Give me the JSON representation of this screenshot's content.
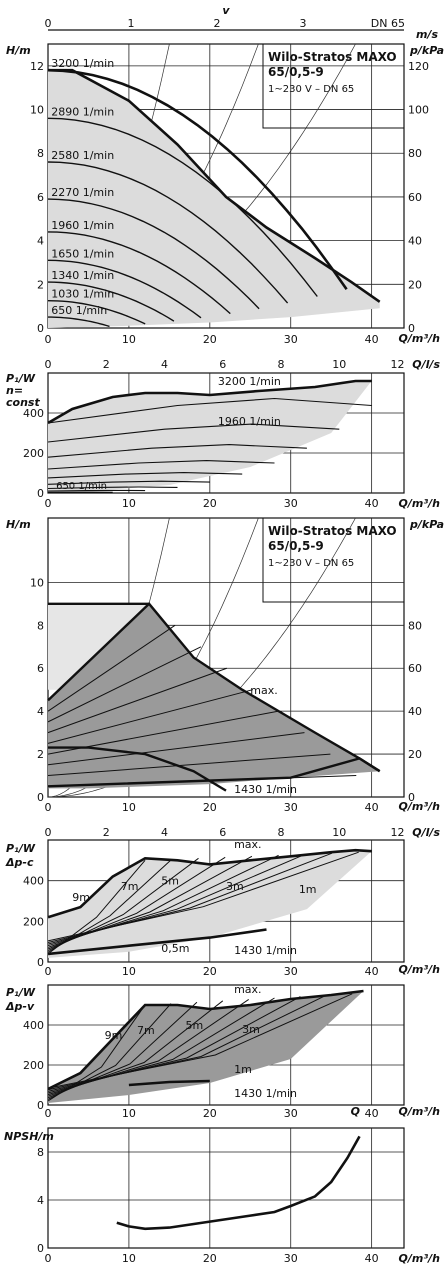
{
  "chart_data": [
    {
      "id": "top_axis",
      "type": "line",
      "title": "v",
      "ticks": [
        "0",
        "1",
        "2",
        "3",
        "DN 65"
      ],
      "tick_values": [
        0,
        1,
        2,
        3
      ],
      "unit": "m/s"
    },
    {
      "id": "qh_speed",
      "type": "line",
      "xlabel": "Q/m³/h",
      "ylabel": "H/m",
      "y2label": "p/kPa",
      "xlim": [
        0,
        44
      ],
      "ylim": [
        0,
        13
      ],
      "y2lim": [
        0,
        130
      ],
      "xticks": [
        "0",
        "10",
        "20",
        "30",
        "40"
      ],
      "yticks": [
        "0",
        "2",
        "4",
        "6",
        "8",
        "10",
        "12"
      ],
      "y2ticks": [
        "0",
        "20",
        "40",
        "60",
        "80",
        "100",
        "120"
      ],
      "title_box": {
        "line1": "Wilo-Stratos MAXO",
        "line2": "65/0,5-9",
        "line3": "1~230 V – DN 65"
      },
      "max_curve": [
        [
          0,
          11.8
        ],
        [
          3,
          11.8
        ],
        [
          10,
          10.4
        ],
        [
          16,
          8.4
        ],
        [
          22,
          6
        ],
        [
          27,
          4.6
        ],
        [
          33,
          3.2
        ],
        [
          37.5,
          2.1
        ],
        [
          41,
          1.2
        ]
      ],
      "speed_curves": [
        {
          "label": "3200 1/min",
          "head": 11.8
        },
        {
          "label": "2890 1/min",
          "head": 9.6
        },
        {
          "label": "2580 1/min",
          "head": 7.6
        },
        {
          "label": "2270 1/min",
          "head": 5.9
        },
        {
          "label": "1960 1/min",
          "head": 4.4
        },
        {
          "label": "1650 1/min",
          "head": 3.1
        },
        {
          "label": "1340 1/min",
          "head": 2.1
        },
        {
          "label": "1030 1/min",
          "head": 1.25
        },
        {
          "label": "650 1/min",
          "head": 0.5
        }
      ]
    },
    {
      "id": "power_speed",
      "type": "line",
      "xlabel": "Q/m³/h",
      "ylabel": "P₁/W",
      "ylabel2": "n=",
      "ylabel3": "const",
      "x2label": "Q/l/s",
      "xlim": [
        0,
        44
      ],
      "ylim": [
        0,
        600
      ],
      "x2ticks": [
        "0",
        "2",
        "4",
        "6",
        "8",
        "10",
        "12"
      ],
      "xticks": [
        "0",
        "10",
        "20",
        "30",
        "40"
      ],
      "yticks": [
        "0",
        "200",
        "400"
      ],
      "curve_labels": [
        "3200 1/min",
        "1960 1/min",
        "650 1/min"
      ],
      "max_curve": [
        [
          0,
          350
        ],
        [
          3,
          420
        ],
        [
          8,
          480
        ],
        [
          12,
          500
        ],
        [
          16,
          500
        ],
        [
          20,
          490
        ],
        [
          26,
          510
        ],
        [
          33,
          530
        ],
        [
          38,
          560
        ],
        [
          40,
          560
        ]
      ]
    },
    {
      "id": "qh_dpc",
      "type": "area",
      "xlabel": "Q/m³/h",
      "ylabel": "H/m",
      "y2label": "p/kPa",
      "xlim": [
        0,
        44
      ],
      "ylim": [
        0,
        13
      ],
      "y2lim": [
        0,
        130
      ],
      "xticks": [
        "0",
        "10",
        "20",
        "30",
        "40"
      ],
      "yticks": [
        "0",
        "2",
        "4",
        "6",
        "8",
        "10"
      ],
      "y2ticks": [
        "0",
        "20",
        "40",
        "60",
        "80"
      ],
      "title_box": {
        "line1": "Wilo-Stratos MAXO",
        "line2": "65/0,5-9",
        "line3": "1~230 V – DN 65"
      },
      "labels": [
        "max.",
        "1430 1/min"
      ],
      "max_curve": [
        [
          0,
          9
        ],
        [
          12.5,
          9
        ],
        [
          18,
          6.5
        ],
        [
          24,
          5
        ],
        [
          33,
          3
        ],
        [
          38.5,
          1.8
        ],
        [
          41,
          1.2
        ]
      ],
      "min_curve": [
        [
          0,
          2.3
        ],
        [
          5,
          2.3
        ],
        [
          12,
          2
        ],
        [
          18,
          1.2
        ],
        [
          22,
          0.3
        ]
      ]
    },
    {
      "id": "power_dpc",
      "type": "line",
      "xlabel": "Q/m³/h",
      "x2label": "Q/l/s",
      "ylabel": "P₁/W",
      "ylabel2": "Δp-c",
      "xlim": [
        0,
        44
      ],
      "ylim": [
        0,
        600
      ],
      "x2ticks": [
        "0",
        "2",
        "4",
        "6",
        "8",
        "10",
        "12"
      ],
      "xticks": [
        "0",
        "10",
        "20",
        "30",
        "40"
      ],
      "yticks": [
        "0",
        "200",
        "400"
      ],
      "curve_labels": [
        "max.",
        "9m",
        "7m",
        "5m",
        "3m",
        "1m",
        "0,5m",
        "1430 1/min"
      ],
      "max_curve": [
        [
          0,
          220
        ],
        [
          4,
          270
        ],
        [
          8,
          420
        ],
        [
          12,
          510
        ],
        [
          16,
          500
        ],
        [
          20,
          480
        ],
        [
          25,
          500
        ],
        [
          30,
          520
        ],
        [
          35,
          540
        ],
        [
          38,
          550
        ],
        [
          40,
          545
        ]
      ]
    },
    {
      "id": "power_dpv",
      "type": "line",
      "xlabel": "Q/m³/h",
      "xlabel_extra": "Q",
      "ylabel": "P₁/W",
      "ylabel2": "Δp-v",
      "xlim": [
        0,
        44
      ],
      "ylim": [
        0,
        600
      ],
      "xticks": [
        "0",
        "10",
        "20",
        "30",
        "40"
      ],
      "yticks": [
        "0",
        "200",
        "400"
      ],
      "curve_labels": [
        "max.",
        "9m",
        "7m",
        "5m",
        "3m",
        "1m",
        "1430 1/min"
      ],
      "max_curve": [
        [
          0,
          80
        ],
        [
          4,
          160
        ],
        [
          8,
          330
        ],
        [
          12,
          500
        ],
        [
          16,
          500
        ],
        [
          20,
          480
        ],
        [
          25,
          500
        ],
        [
          30,
          530
        ],
        [
          35,
          550
        ],
        [
          39,
          570
        ]
      ]
    },
    {
      "id": "npsh",
      "type": "line",
      "xlabel": "Q/m³/h",
      "ylabel": "NPSH/m",
      "xlim": [
        0,
        44
      ],
      "ylim": [
        0,
        10
      ],
      "xticks": [
        "0",
        "10",
        "20",
        "30",
        "40"
      ],
      "yticks": [
        "0",
        "4",
        "8"
      ],
      "curve": [
        [
          8.5,
          2.1
        ],
        [
          10,
          1.8
        ],
        [
          12,
          1.6
        ],
        [
          15,
          1.7
        ],
        [
          20,
          2.2
        ],
        [
          25,
          2.7
        ],
        [
          28,
          3
        ],
        [
          30,
          3.5
        ],
        [
          33,
          4.3
        ],
        [
          35,
          5.5
        ],
        [
          37,
          7.5
        ],
        [
          38.5,
          9.3
        ]
      ]
    }
  ]
}
